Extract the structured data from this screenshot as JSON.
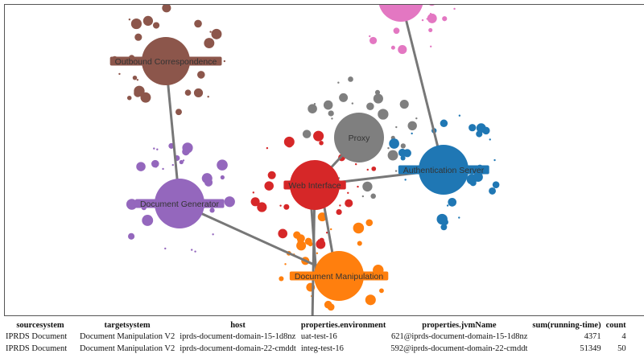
{
  "graph": {
    "edge_color": "#777777",
    "nodes": [
      {
        "id": "outbound",
        "label": "Outbound Correspondence",
        "color": "#8c564b"
      },
      {
        "id": "docgen",
        "label": "Document Generator",
        "color": "#9467bd"
      },
      {
        "id": "web",
        "label": "Web Interface",
        "color": "#d62728"
      },
      {
        "id": "proxy",
        "label": "Proxy",
        "color": "#7f7f7f"
      },
      {
        "id": "auth",
        "label": "Authentication Server",
        "color": "#1f77b4"
      },
      {
        "id": "docmanip",
        "label": "Document Manipulation",
        "color": "#ff7f0e"
      },
      {
        "id": "pink",
        "label": "",
        "color": "#e377c2"
      }
    ],
    "edges": [
      [
        "outbound",
        "docgen"
      ],
      [
        "docgen",
        "docmanip"
      ],
      [
        "web",
        "proxy"
      ],
      [
        "web",
        "auth"
      ],
      [
        "pink",
        "auth"
      ],
      [
        "web",
        "docmanip"
      ],
      [
        "web",
        "docmanip"
      ],
      [
        "web",
        "bottom"
      ]
    ]
  },
  "table": {
    "headers": [
      "sourcesystem",
      "targetsystem",
      "host",
      "properties.environment",
      "properties.jvmName",
      "sum(running-time)",
      "count"
    ],
    "rows": [
      [
        "IPRDS Document",
        "Document Manipulation V2",
        "iprds-document-domain-15-1d8nz",
        "uat-test-16",
        "621@iprds-document-domain-15-1d8nz",
        "4371",
        "4"
      ],
      [
        "IPRDS Document",
        "Document Manipulation V2",
        "iprds-document-domain-22-cmddt",
        "integ-test-16",
        "592@iprds-document-domain-22-cmddt",
        "51349",
        "50"
      ]
    ]
  }
}
